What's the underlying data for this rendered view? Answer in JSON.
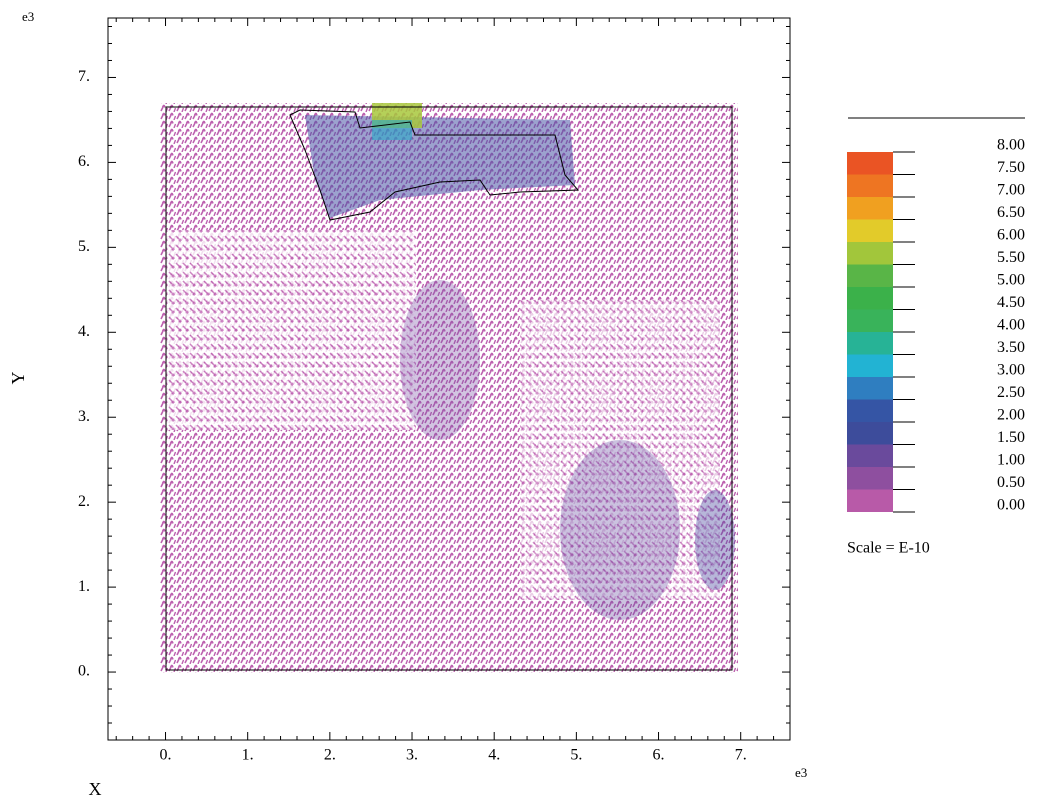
{
  "chart_data": {
    "type": "quiver",
    "xlabel": "X",
    "ylabel": "Y",
    "x_multiplier": "e3",
    "y_multiplier": "e3",
    "xlim": [
      -0.7,
      7.6
    ],
    "ylim": [
      -0.8,
      7.7
    ],
    "xticks": [
      {
        "value": 0,
        "label": "0."
      },
      {
        "value": 1,
        "label": "1."
      },
      {
        "value": 2,
        "label": "2."
      },
      {
        "value": 3,
        "label": "3."
      },
      {
        "value": 4,
        "label": "4."
      },
      {
        "value": 5,
        "label": "5."
      },
      {
        "value": 6,
        "label": "6."
      },
      {
        "value": 7,
        "label": "7."
      }
    ],
    "yticks": [
      {
        "value": 0,
        "label": "0."
      },
      {
        "value": 1,
        "label": "1."
      },
      {
        "value": 2,
        "label": "2."
      },
      {
        "value": 3,
        "label": "3."
      },
      {
        "value": 4,
        "label": "4."
      },
      {
        "value": 5,
        "label": "5."
      },
      {
        "value": 6,
        "label": "6."
      },
      {
        "value": 7,
        "label": "7."
      }
    ],
    "colorbar": {
      "levels": [
        {
          "value": 0,
          "label": "0.00"
        },
        {
          "value": 0.5,
          "label": "0.50"
        },
        {
          "value": 1,
          "label": "1.00"
        },
        {
          "value": 1.5,
          "label": "1.50"
        },
        {
          "value": 2,
          "label": "2.00"
        },
        {
          "value": 2.5,
          "label": "2.50"
        },
        {
          "value": 3,
          "label": "3.00"
        },
        {
          "value": 3.5,
          "label": "3.50"
        },
        {
          "value": 4,
          "label": "4.00"
        },
        {
          "value": 4.5,
          "label": "4.50"
        },
        {
          "value": 5,
          "label": "5.00"
        },
        {
          "value": 5.5,
          "label": "5.50"
        },
        {
          "value": 6,
          "label": "6.00"
        },
        {
          "value": 6.5,
          "label": "6.50"
        },
        {
          "value": 7,
          "label": "7.00"
        },
        {
          "value": 7.5,
          "label": "7.50"
        },
        {
          "value": 8,
          "label": "8.00"
        }
      ],
      "colors": [
        "#b85aa8",
        "#8e4f9f",
        "#6a4a9c",
        "#3d4c9b",
        "#3555a5",
        "#2f7ec0",
        "#22b3d3",
        "#27b396",
        "#39b35a",
        "#3bb14a",
        "#59b547",
        "#a2c63b",
        "#e2cb2a",
        "#f0a020",
        "#ee7522",
        "#ea5424"
      ],
      "scale_text": "Scale = E-10"
    }
  }
}
